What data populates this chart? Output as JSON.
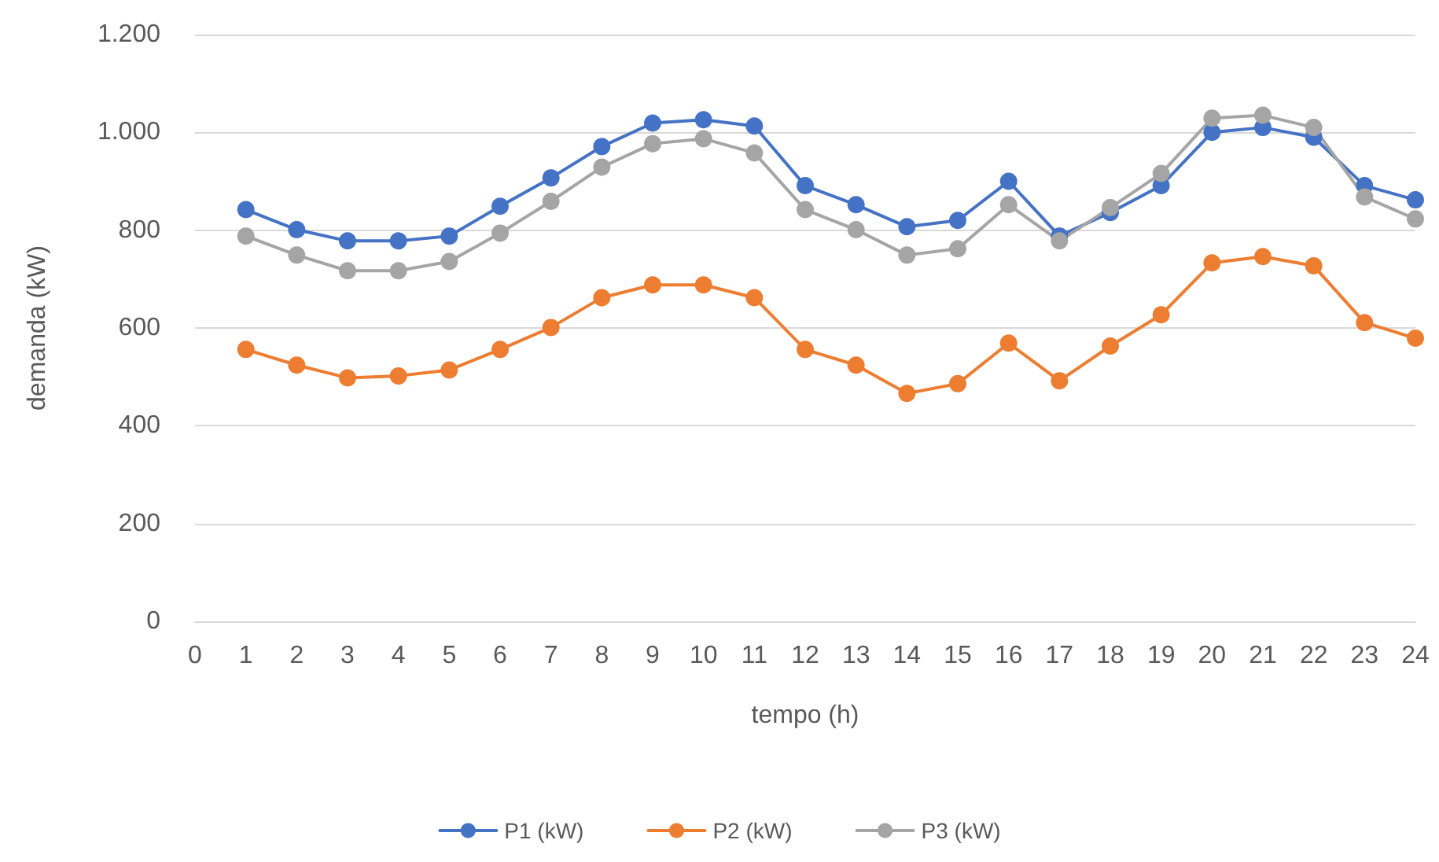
{
  "chart_data": {
    "type": "line",
    "xlabel": "tempo (h)",
    "ylabel": "demanda (kW)",
    "x": [
      1,
      2,
      3,
      4,
      5,
      6,
      7,
      8,
      9,
      10,
      11,
      12,
      13,
      14,
      15,
      16,
      17,
      18,
      19,
      20,
      21,
      22,
      23,
      24
    ],
    "series": [
      {
        "name": "P1 (kW)",
        "color": "#4472c4",
        "values": [
          842,
          801,
          778,
          778,
          788,
          849,
          907,
          971,
          1019,
          1026,
          1013,
          891,
          852,
          807,
          820,
          900,
          788,
          836,
          891,
          1000,
          1010,
          990,
          891,
          862
        ]
      },
      {
        "name": "P2 (kW)",
        "color": "#ed7d31",
        "values": [
          556,
          524,
          498,
          502,
          514,
          556,
          601,
          662,
          688,
          688,
          662,
          556,
          524,
          466,
          486,
          569,
          492,
          563,
          627,
          733,
          746,
          727,
          611,
          579
        ]
      },
      {
        "name": "P3 (kW)",
        "color": "#a5a5a5",
        "values": [
          788,
          749,
          717,
          717,
          736,
          794,
          859,
          929,
          977,
          987,
          958,
          842,
          801,
          749,
          762,
          852,
          778,
          846,
          916,
          1029,
          1035,
          1010,
          868,
          823
        ]
      }
    ],
    "xlim": [
      0,
      24
    ],
    "xticks": [
      0,
      1,
      2,
      3,
      4,
      5,
      6,
      7,
      8,
      9,
      10,
      11,
      12,
      13,
      14,
      15,
      16,
      17,
      18,
      19,
      20,
      21,
      22,
      23,
      24
    ],
    "ylim": [
      0,
      1200
    ],
    "yticks": [
      0,
      200,
      400,
      600,
      800,
      {
        "value": 1000,
        "label": "1.000"
      },
      {
        "value": 1200,
        "label": "1.200"
      }
    ],
    "grid": "y",
    "legend": "bottom",
    "marker": "circle",
    "line_style": "solid"
  }
}
